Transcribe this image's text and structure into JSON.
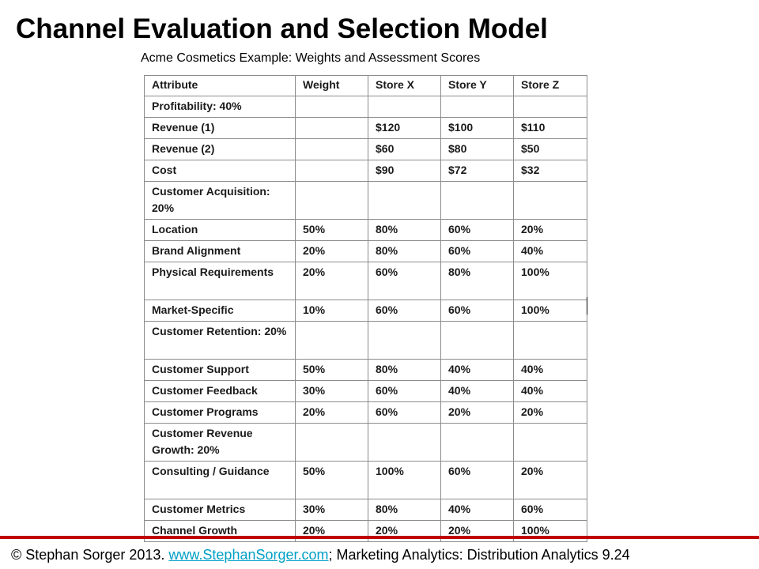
{
  "title": "Channel Evaluation and Selection Model",
  "subtitle": "Acme Cosmetics Example: Weights and Assessment Scores",
  "table": {
    "headers": [
      "Attribute",
      "Weight",
      "Store X",
      "Store Y",
      "Store Z"
    ],
    "rows": [
      {
        "cells": [
          "Profitability: 40%",
          "",
          "",
          "",
          ""
        ],
        "category": true,
        "lines": 1
      },
      {
        "cells": [
          "Revenue (1)",
          "",
          "$120",
          "$100",
          "$110"
        ],
        "category": false,
        "lines": 1
      },
      {
        "cells": [
          "Revenue (2)",
          "",
          "$60",
          "$80",
          "$50"
        ],
        "category": false,
        "lines": 1
      },
      {
        "cells": [
          "Cost",
          "",
          "$90",
          "$72",
          "$32"
        ],
        "category": false,
        "lines": 1
      },
      {
        "cells": [
          "Customer Acquisition: 20%",
          "",
          "",
          "",
          ""
        ],
        "category": true,
        "lines": 2
      },
      {
        "cells": [
          "Location",
          "50%",
          "80%",
          "60%",
          "20%"
        ],
        "category": false,
        "indent": true,
        "lines": 1
      },
      {
        "cells": [
          "Brand Alignment",
          "20%",
          "80%",
          "60%",
          "40%"
        ],
        "category": false,
        "indent": true,
        "lines": 1
      },
      {
        "cells": [
          "Physical Requirements",
          "20%",
          "60%",
          "80%",
          "100%"
        ],
        "category": false,
        "indent": true,
        "lines": 2
      },
      {
        "cells": [
          "Market-Specific",
          "10%",
          "60%",
          "60%",
          "100%"
        ],
        "category": false,
        "indent": true,
        "lines": 1
      },
      {
        "cells": [
          "Customer Retention: 20%",
          "",
          "",
          "",
          ""
        ],
        "category": true,
        "lines": 2
      },
      {
        "cells": [
          "Customer Support",
          "50%",
          "80%",
          "40%",
          "40%"
        ],
        "category": false,
        "indent": true,
        "lines": 1
      },
      {
        "cells": [
          "Customer Feedback",
          "30%",
          "60%",
          "40%",
          "40%"
        ],
        "category": false,
        "indent": true,
        "lines": 1
      },
      {
        "cells": [
          "Customer Programs",
          "20%",
          "60%",
          "20%",
          "20%"
        ],
        "category": false,
        "indent": true,
        "lines": 1
      },
      {
        "cells": [
          "Customer Revenue Growth: 20%",
          "",
          "",
          "",
          ""
        ],
        "category": true,
        "lines": 2
      },
      {
        "cells": [
          "Consulting / Guidance",
          "50%",
          "100%",
          "60%",
          "20%"
        ],
        "category": false,
        "indent": true,
        "lines": 2
      },
      {
        "cells": [
          "Customer Metrics",
          "30%",
          "80%",
          "40%",
          "60%"
        ],
        "category": false,
        "indent": true,
        "lines": 1
      },
      {
        "cells": [
          "Channel Growth",
          "20%",
          "20%",
          "20%",
          "100%"
        ],
        "category": false,
        "indent": true,
        "lines": 1
      }
    ]
  },
  "footer": {
    "prefix": "© Stephan Sorger 2013. ",
    "link_text": "www.StephanSorger.com",
    "suffix": "; Marketing Analytics: Distribution Analytics 9.24"
  },
  "colors": {
    "accent_rule": "#c00000",
    "link": "#00a0c6",
    "table_border": "#8c8c8c"
  }
}
